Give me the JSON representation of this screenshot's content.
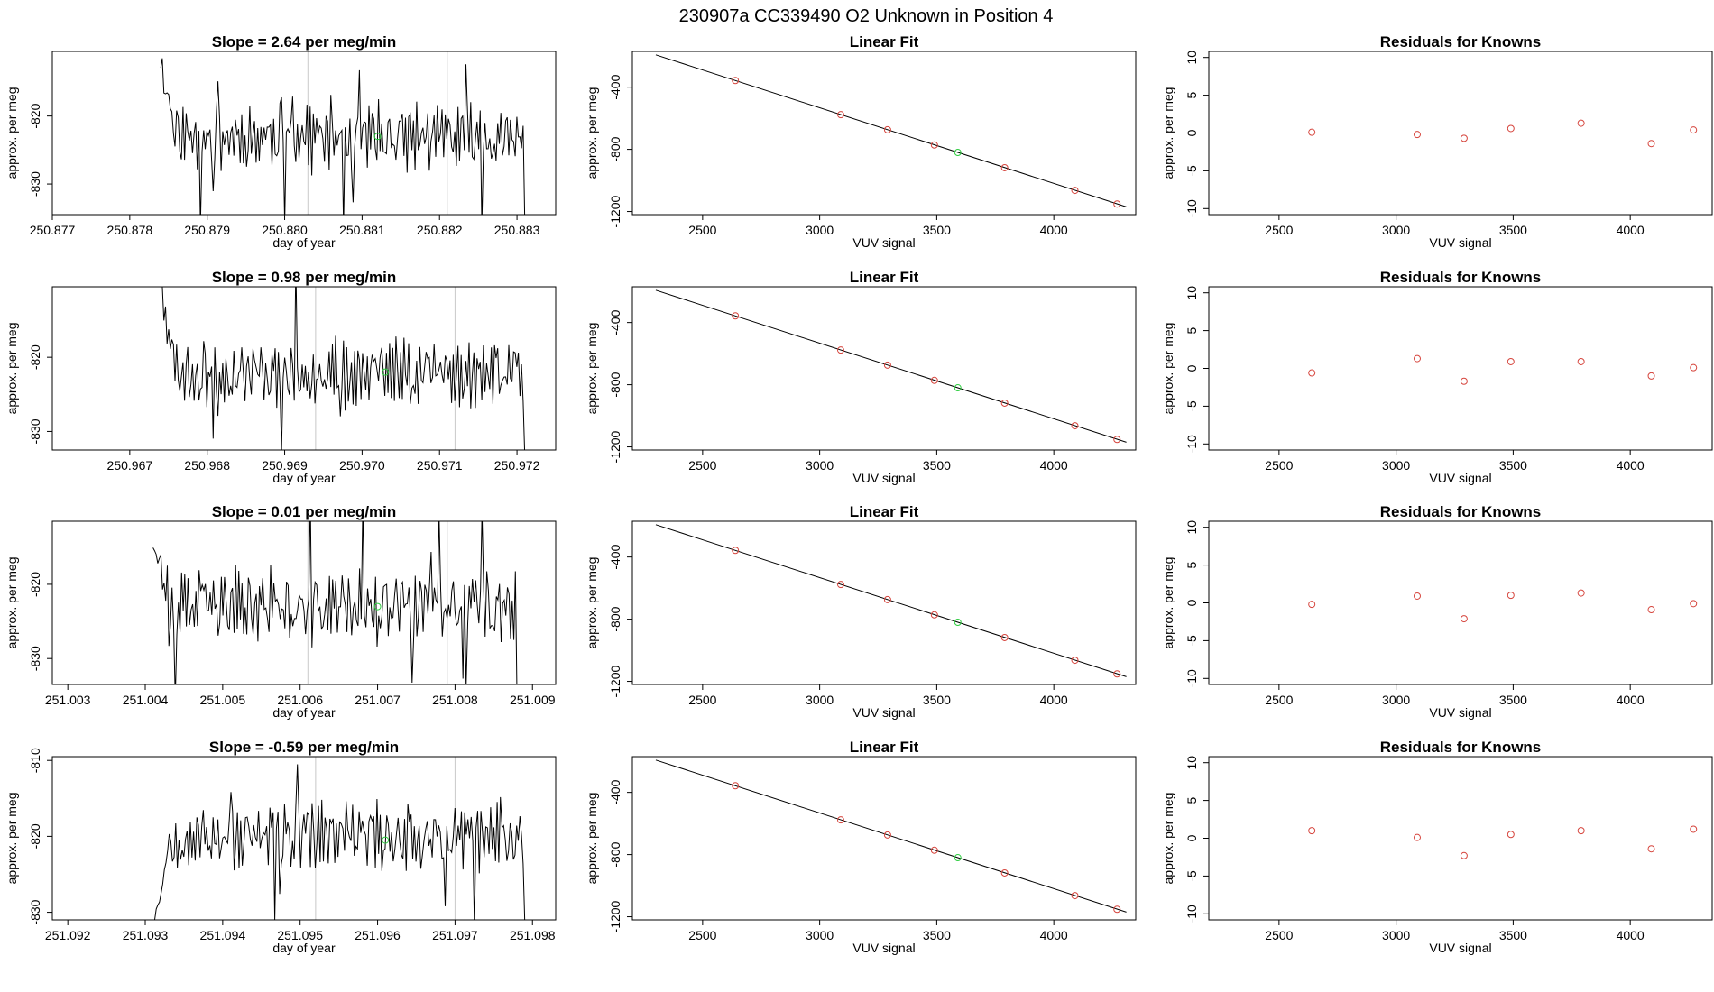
{
  "figure": {
    "title": "230907a      CC339490    O2 Unknown in Position  4"
  },
  "colors": {
    "trace": "#000000",
    "known_point": "#d6453d",
    "unknown_point": "#2ecc40",
    "window_line": "#c8c8c8",
    "frame": "#000000"
  },
  "chart_data": [
    {
      "type": "line",
      "row": 1,
      "title": "Slope =  2.64  per meg/min",
      "xlabel": "day of year",
      "ylabel": "approx. per meg",
      "xlim": [
        250.877,
        250.8835
      ],
      "ylim": [
        -834.5,
        -810.5
      ],
      "xticks": [
        "250.877",
        "250.878",
        "250.879",
        "250.880",
        "250.881",
        "250.882",
        "250.883"
      ],
      "yticks": [
        "-820",
        "-830"
      ],
      "trace_start": 250.8784,
      "trace_end": 250.8831,
      "n_points": 230,
      "seed": 11,
      "trace_mean": -823,
      "trace_amp": 5,
      "trace_start_level": -812,
      "window_lines": [
        250.8803,
        250.8821
      ],
      "unknown_point": {
        "x": 250.8812,
        "y": -823.0
      }
    },
    {
      "type": "scatter",
      "row": 1,
      "title": "Linear Fit",
      "xlabel": "VUV signal",
      "ylabel": "approx. per meg",
      "xlim": [
        2200,
        4350
      ],
      "ylim": [
        -1220,
        -170
      ],
      "xticks": [
        "2500",
        "3000",
        "3500",
        "4000"
      ],
      "yticks": [
        "-400",
        "-800",
        "-1200"
      ],
      "fit_line": {
        "x": [
          2300,
          4310
        ],
        "y": [
          -192,
          -1170
        ]
      },
      "knowns": {
        "x": [
          2640,
          3090,
          3290,
          3490,
          3790,
          4090,
          4270
        ],
        "y": [
          -357,
          -577,
          -674,
          -772,
          -918,
          -1064,
          -1152
        ]
      },
      "unknown": {
        "x": [
          3590
        ],
        "y": [
          -820
        ]
      }
    },
    {
      "type": "scatter",
      "row": 1,
      "title": "Residuals for Knowns",
      "xlabel": "VUV signal",
      "ylabel": "approx. per meg",
      "xlim": [
        2200,
        4350
      ],
      "ylim": [
        -10.8,
        10.8
      ],
      "xticks": [
        "2500",
        "3000",
        "3500",
        "4000"
      ],
      "yticks": [
        "10",
        "5",
        "0",
        "-5",
        "-10"
      ],
      "residuals": {
        "x": [
          2640,
          3090,
          3290,
          3490,
          3790,
          4090,
          4270
        ],
        "y": [
          0.1,
          -0.2,
          -0.7,
          0.6,
          1.3,
          -1.4,
          0.4
        ]
      }
    },
    {
      "type": "line",
      "row": 2,
      "title": "Slope =  0.98  per meg/min",
      "xlabel": "day of year",
      "ylabel": "approx. per meg",
      "xlim": [
        250.966,
        250.9725
      ],
      "ylim": [
        -832.5,
        -810.5
      ],
      "xticks": [
        "250.967",
        "250.968",
        "250.969",
        "250.970",
        "250.971",
        "250.972"
      ],
      "yticks": [
        "-820",
        "-830"
      ],
      "trace_start": 250.9674,
      "trace_end": 250.9721,
      "n_points": 230,
      "seed": 23,
      "trace_mean": -822,
      "trace_amp": 4.5,
      "trace_start_level": -811,
      "window_lines": [
        250.9694,
        250.9712
      ],
      "unknown_point": {
        "x": 250.9703,
        "y": -822.0
      }
    },
    {
      "type": "scatter",
      "row": 2,
      "title": "Linear Fit",
      "xlabel": "VUV signal",
      "ylabel": "approx. per meg",
      "xlim": [
        2200,
        4350
      ],
      "ylim": [
        -1220,
        -170
      ],
      "xticks": [
        "2500",
        "3000",
        "3500",
        "4000"
      ],
      "yticks": [
        "-400",
        "-800",
        "-1200"
      ],
      "fit_line": {
        "x": [
          2300,
          4310
        ],
        "y": [
          -192,
          -1170
        ]
      },
      "knowns": {
        "x": [
          2640,
          3090,
          3290,
          3490,
          3790,
          4090,
          4270
        ],
        "y": [
          -357,
          -577,
          -674,
          -772,
          -918,
          -1064,
          -1152
        ]
      },
      "unknown": {
        "x": [
          3590
        ],
        "y": [
          -820
        ]
      }
    },
    {
      "type": "scatter",
      "row": 2,
      "title": "Residuals for Knowns",
      "xlabel": "VUV signal",
      "ylabel": "approx. per meg",
      "xlim": [
        2200,
        4350
      ],
      "ylim": [
        -10.8,
        10.8
      ],
      "xticks": [
        "2500",
        "3000",
        "3500",
        "4000"
      ],
      "yticks": [
        "10",
        "5",
        "0",
        "-5",
        "-10"
      ],
      "residuals": {
        "x": [
          2640,
          3090,
          3290,
          3490,
          3790,
          4090,
          4270
        ],
        "y": [
          -0.6,
          1.3,
          -1.7,
          0.9,
          0.9,
          -1.0,
          0.1
        ]
      }
    },
    {
      "type": "line",
      "row": 3,
      "title": "Slope =  0.01  per meg/min",
      "xlabel": "day of year",
      "ylabel": "approx. per meg",
      "xlim": [
        251.0028,
        251.0093
      ],
      "ylim": [
        -833.5,
        -811.5
      ],
      "xticks": [
        "251.003",
        "251.004",
        "251.005",
        "251.006",
        "251.007",
        "251.008",
        "251.009"
      ],
      "yticks": [
        "-820",
        "-830"
      ],
      "trace_start": 251.0041,
      "trace_end": 251.0088,
      "n_points": 230,
      "seed": 37,
      "trace_mean": -823,
      "trace_amp": 5,
      "trace_start_level": -813,
      "window_lines": [
        251.0061,
        251.0079
      ],
      "unknown_point": {
        "x": 251.007,
        "y": -823.0
      }
    },
    {
      "type": "scatter",
      "row": 3,
      "title": "Linear Fit",
      "xlabel": "VUV signal",
      "ylabel": "approx. per meg",
      "xlim": [
        2200,
        4350
      ],
      "ylim": [
        -1220,
        -170
      ],
      "xticks": [
        "2500",
        "3000",
        "3500",
        "4000"
      ],
      "yticks": [
        "-400",
        "-800",
        "-1200"
      ],
      "fit_line": {
        "x": [
          2300,
          4310
        ],
        "y": [
          -192,
          -1170
        ]
      },
      "knowns": {
        "x": [
          2640,
          3090,
          3290,
          3490,
          3790,
          4090,
          4270
        ],
        "y": [
          -357,
          -577,
          -674,
          -772,
          -918,
          -1064,
          -1152
        ]
      },
      "unknown": {
        "x": [
          3590
        ],
        "y": [
          -820
        ]
      }
    },
    {
      "type": "scatter",
      "row": 3,
      "title": "Residuals for Knowns",
      "xlabel": "VUV signal",
      "ylabel": "approx. per meg",
      "xlim": [
        2200,
        4350
      ],
      "ylim": [
        -10.8,
        10.8
      ],
      "xticks": [
        "2500",
        "3000",
        "3500",
        "4000"
      ],
      "yticks": [
        "10",
        "5",
        "0",
        "-5",
        "-10"
      ],
      "residuals": {
        "x": [
          2640,
          3090,
          3290,
          3490,
          3790,
          4090,
          4270
        ],
        "y": [
          -0.2,
          0.9,
          -2.1,
          1.0,
          1.3,
          -0.9,
          -0.1
        ]
      }
    },
    {
      "type": "line",
      "row": 4,
      "title": "Slope =  -0.59  per meg/min",
      "xlabel": "day of year",
      "ylabel": "approx. per meg",
      "xlim": [
        251.0918,
        251.0983
      ],
      "ylim": [
        -831,
        -809.5
      ],
      "xticks": [
        "251.092",
        "251.093",
        "251.094",
        "251.095",
        "251.096",
        "251.097",
        "251.098"
      ],
      "yticks": [
        "-810",
        "-820",
        "-830"
      ],
      "trace_start": 251.0931,
      "trace_end": 251.0979,
      "n_points": 230,
      "seed": 53,
      "trace_mean": -820,
      "trace_amp": 4.5,
      "trace_start_level": -831,
      "window_lines": [
        251.0952,
        251.097
      ],
      "unknown_point": {
        "x": 251.0961,
        "y": -820.5
      }
    },
    {
      "type": "scatter",
      "row": 4,
      "title": "Linear Fit",
      "xlabel": "VUV signal",
      "ylabel": "approx. per meg",
      "xlim": [
        2200,
        4350
      ],
      "ylim": [
        -1220,
        -170
      ],
      "xticks": [
        "2500",
        "3000",
        "3500",
        "4000"
      ],
      "yticks": [
        "-400",
        "-800",
        "-1200"
      ],
      "fit_line": {
        "x": [
          2300,
          4310
        ],
        "y": [
          -192,
          -1170
        ]
      },
      "knowns": {
        "x": [
          2640,
          3090,
          3290,
          3490,
          3790,
          4090,
          4270
        ],
        "y": [
          -357,
          -577,
          -674,
          -772,
          -918,
          -1064,
          -1152
        ]
      },
      "unknown": {
        "x": [
          3590
        ],
        "y": [
          -820
        ]
      }
    },
    {
      "type": "scatter",
      "row": 4,
      "title": "Residuals for Knowns",
      "xlabel": "VUV signal",
      "ylabel": "approx. per meg",
      "xlim": [
        2200,
        4350
      ],
      "ylim": [
        -10.8,
        10.8
      ],
      "xticks": [
        "2500",
        "3000",
        "3500",
        "4000"
      ],
      "yticks": [
        "10",
        "5",
        "0",
        "-5",
        "-10"
      ],
      "residuals": {
        "x": [
          2640,
          3090,
          3290,
          3490,
          3790,
          4090,
          4270
        ],
        "y": [
          1.0,
          0.1,
          -2.3,
          0.5,
          1.0,
          -1.4,
          1.2
        ]
      }
    }
  ]
}
